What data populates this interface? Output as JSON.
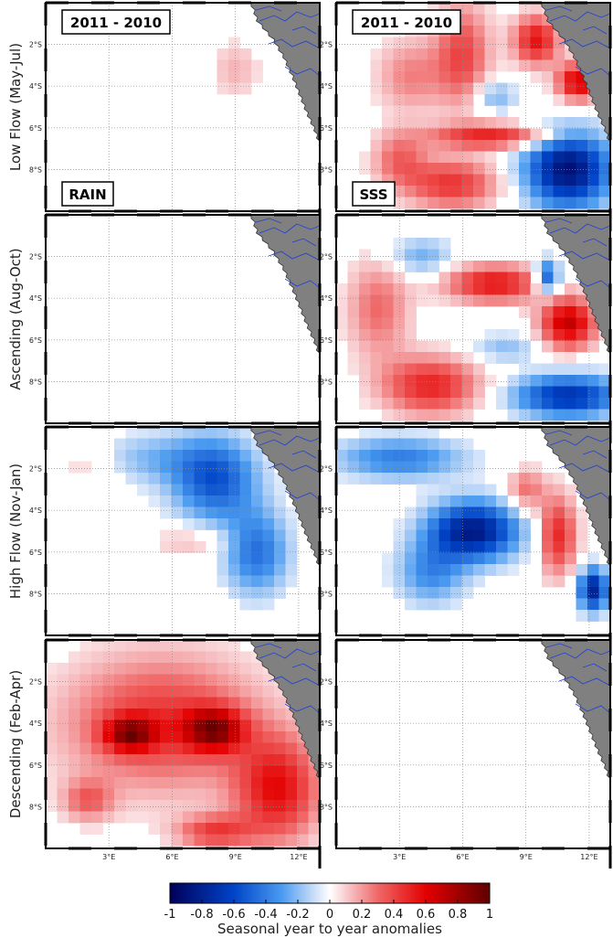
{
  "chart_data": {
    "type": "heatmap",
    "columns": [
      "RAIN",
      "SSS"
    ],
    "rows": [
      {
        "label": "Low Flow (May-Jul)"
      },
      {
        "label": "Ascending (Aug-Oct)"
      },
      {
        "label": "High Flow (Nov-Jan)"
      },
      {
        "label": "Descending (Feb-Apr)"
      }
    ],
    "period_label": "2011 - 2010",
    "lat_ticks": [
      "2°S",
      "4°S",
      "6°S",
      "8°S"
    ],
    "lon_ticks": [
      "3°E",
      "6°E",
      "9°E",
      "12°E"
    ],
    "lon_range": [
      0,
      13
    ],
    "lat_range": [
      -10,
      0
    ],
    "colorbar": {
      "min": -1,
      "max": 1,
      "ticks": [
        "-1",
        "-0.8",
        "-0.6",
        "-0.4",
        "-0.2",
        "0",
        "0.2",
        "0.4",
        "0.6",
        "0.8",
        "1"
      ],
      "title": "Seasonal year to year anomalies"
    },
    "blobs": [
      {
        "p": "r0c1",
        "cx": 6,
        "cy": -2.5,
        "rx": 1.3,
        "ry": 2.5,
        "v": 0.4
      },
      {
        "p": "r0c1",
        "cx": 3.5,
        "cy": -3.5,
        "rx": 1.6,
        "ry": 1.8,
        "v": 0.25
      },
      {
        "p": "r0c1",
        "cx": 9.5,
        "cy": -1.8,
        "rx": 1.1,
        "ry": 1.2,
        "v": 0.55
      },
      {
        "p": "r0c1",
        "cx": 11.5,
        "cy": -3.8,
        "rx": 1.0,
        "ry": 0.9,
        "v": 0.65
      },
      {
        "p": "r0c1",
        "cx": 7.5,
        "cy": -6.4,
        "rx": 3.0,
        "ry": 0.6,
        "v": 0.5
      },
      {
        "p": "r0c1",
        "cx": 5.5,
        "cy": -8.7,
        "rx": 2.2,
        "ry": 1.2,
        "v": 0.45
      },
      {
        "p": "r0c1",
        "cx": 3.0,
        "cy": -7.5,
        "rx": 1.3,
        "ry": 1.3,
        "v": 0.3
      },
      {
        "p": "r0c1",
        "cx": 11.0,
        "cy": -8.0,
        "rx": 2.0,
        "ry": 1.8,
        "v": -0.9
      },
      {
        "p": "r0c1",
        "cx": 7.5,
        "cy": -4.5,
        "rx": 1.0,
        "ry": 0.8,
        "v": -0.25
      },
      {
        "p": "r0c0",
        "cx": 9.0,
        "cy": -3.2,
        "rx": 1.2,
        "ry": 1.4,
        "v": 0.15
      },
      {
        "p": "r1c1",
        "cx": 7.5,
        "cy": -3.3,
        "rx": 2.3,
        "ry": 0.9,
        "v": 0.55
      },
      {
        "p": "r1c1",
        "cx": 11.0,
        "cy": -5.2,
        "rx": 1.3,
        "ry": 1.2,
        "v": 0.7
      },
      {
        "p": "r1c1",
        "cx": 4.5,
        "cy": -8.2,
        "rx": 2.3,
        "ry": 1.4,
        "v": 0.5
      },
      {
        "p": "r1c1",
        "cx": 2.0,
        "cy": -4.5,
        "rx": 1.5,
        "ry": 2.4,
        "v": 0.3
      },
      {
        "p": "r1c1",
        "cx": 11.0,
        "cy": -8.7,
        "rx": 2.5,
        "ry": 1.0,
        "v": -0.7
      },
      {
        "p": "r1c1",
        "cx": 4.0,
        "cy": -2.0,
        "rx": 1.5,
        "ry": 0.9,
        "v": -0.25
      },
      {
        "p": "r1c1",
        "cx": 10.0,
        "cy": -3.0,
        "rx": 0.6,
        "ry": 0.8,
        "v": -0.6
      },
      {
        "p": "r1c1",
        "cx": 8.0,
        "cy": -6.4,
        "rx": 1.6,
        "ry": 0.7,
        "v": -0.2
      },
      {
        "p": "r2c0",
        "cx": 8.0,
        "cy": -2.5,
        "rx": 2.0,
        "ry": 2.0,
        "v": -0.55
      },
      {
        "p": "r2c0",
        "cx": 10.0,
        "cy": -6.0,
        "rx": 1.5,
        "ry": 2.0,
        "v": -0.45
      },
      {
        "p": "r2c0",
        "cx": 5.0,
        "cy": -1.5,
        "rx": 2.5,
        "ry": 1.2,
        "v": -0.2
      },
      {
        "p": "r2c0",
        "cx": 7.0,
        "cy": -5.5,
        "rx": 2.0,
        "ry": 0.8,
        "v": 0.15
      },
      {
        "p": "r2c0",
        "cx": 2.0,
        "cy": -2.0,
        "rx": 1.5,
        "ry": 1.0,
        "v": 0.1
      },
      {
        "p": "r2c1",
        "cx": 6.5,
        "cy": -5.0,
        "rx": 2.1,
        "ry": 1.4,
        "v": -0.85
      },
      {
        "p": "r2c1",
        "cx": 3.0,
        "cy": -1.5,
        "rx": 3.0,
        "ry": 1.0,
        "v": -0.4
      },
      {
        "p": "r2c1",
        "cx": 4.5,
        "cy": -7.0,
        "rx": 1.6,
        "ry": 1.5,
        "v": -0.35
      },
      {
        "p": "r2c1",
        "cx": 10.5,
        "cy": -5.2,
        "rx": 0.9,
        "ry": 1.9,
        "v": 0.5
      },
      {
        "p": "r2c1",
        "cx": 9.0,
        "cy": -3.0,
        "rx": 0.9,
        "ry": 1.0,
        "v": 0.3
      },
      {
        "p": "r2c1",
        "cx": 12.2,
        "cy": -7.8,
        "rx": 0.7,
        "ry": 1.0,
        "v": -0.8
      },
      {
        "p": "r3c0",
        "cx": 5.5,
        "cy": -4.0,
        "rx": 4.6,
        "ry": 3.2,
        "v": 0.45
      },
      {
        "p": "r3c0",
        "cx": 11.0,
        "cy": -7.2,
        "rx": 2.0,
        "ry": 2.5,
        "v": 0.55
      },
      {
        "p": "r3c0",
        "cx": 8.0,
        "cy": -4.3,
        "rx": 1.4,
        "ry": 1.0,
        "v": 0.65
      },
      {
        "p": "r3c0",
        "cx": 4.0,
        "cy": -4.5,
        "rx": 1.2,
        "ry": 0.8,
        "v": 0.6
      },
      {
        "p": "r3c0",
        "cx": 2.0,
        "cy": -7.7,
        "rx": 1.2,
        "ry": 1.0,
        "v": 0.3
      },
      {
        "p": "r3c0",
        "cx": 8.0,
        "cy": -9.2,
        "rx": 1.8,
        "ry": 0.8,
        "v": 0.4
      }
    ]
  }
}
